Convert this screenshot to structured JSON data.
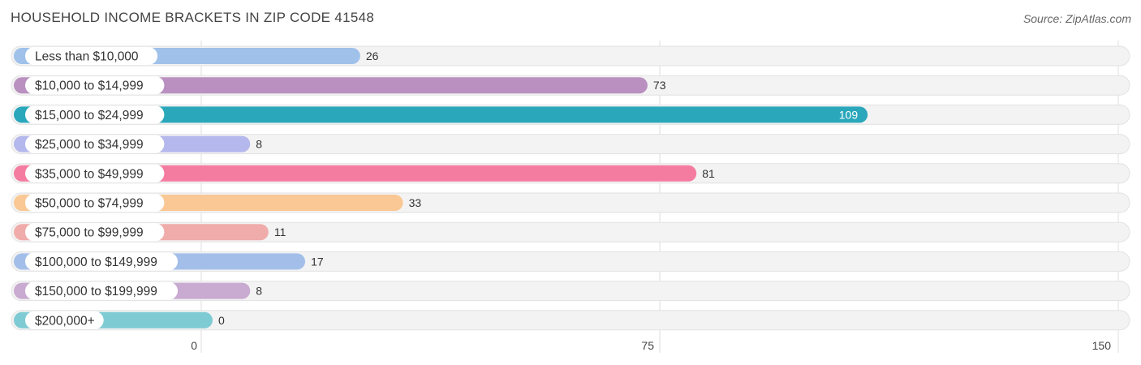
{
  "chart_data": {
    "type": "bar",
    "orientation": "horizontal",
    "title": "HOUSEHOLD INCOME BRACKETS IN ZIP CODE 41548",
    "source": "Source: ZipAtlas.com",
    "categories": [
      "Less than $10,000",
      "$10,000 to $14,999",
      "$15,000 to $24,999",
      "$25,000 to $34,999",
      "$35,000 to $49,999",
      "$50,000 to $74,999",
      "$75,000 to $99,999",
      "$100,000 to $149,999",
      "$150,000 to $199,999",
      "$200,000+"
    ],
    "values": [
      26,
      73,
      109,
      8,
      81,
      33,
      11,
      17,
      8,
      0
    ],
    "colors": [
      "#9fc1ea",
      "#b990c0",
      "#2aa7bb",
      "#b4b8ec",
      "#f57ca1",
      "#f9c894",
      "#f0acaa",
      "#a3bfe9",
      "#c9aad0",
      "#7fcbd4"
    ],
    "xlim": [
      0,
      150
    ],
    "xticks": [
      0,
      75,
      150
    ],
    "highlight_index": 2,
    "grid": true
  }
}
